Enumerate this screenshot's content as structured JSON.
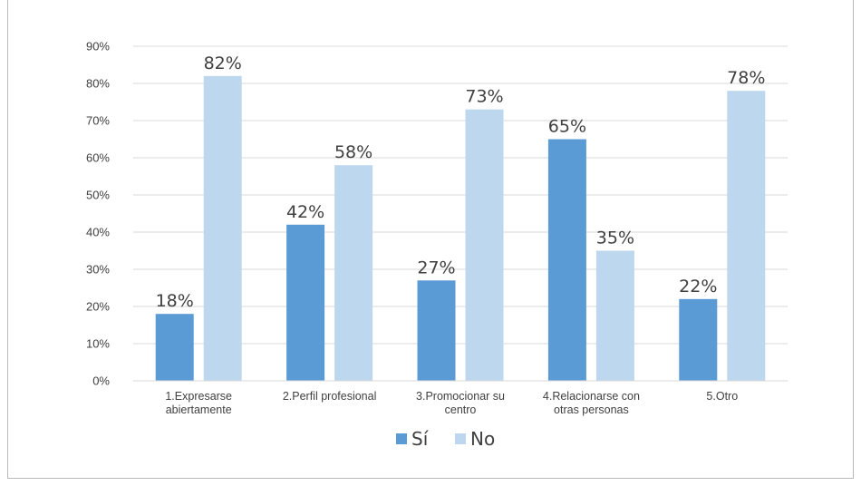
{
  "chart_data": {
    "type": "bar",
    "categories": [
      [
        "1.Expresarse",
        "abiertamente"
      ],
      [
        "2.Perfil profesional"
      ],
      [
        "3.Promocionar su",
        "centro"
      ],
      [
        "4.Relacionarse con",
        "otras personas"
      ],
      [
        "5.Otro"
      ]
    ],
    "series": [
      {
        "name": "Sí",
        "values": [
          18,
          42,
          27,
          65,
          22
        ],
        "color": "#5b9bd5"
      },
      {
        "name": "No",
        "values": [
          82,
          58,
          73,
          35,
          78
        ],
        "color": "#bdd7ee"
      }
    ],
    "data_labels": [
      [
        "18%",
        "42%",
        "27%",
        "65%",
        "22%"
      ],
      [
        "82%",
        "58%",
        "73%",
        "35%",
        "78%"
      ]
    ],
    "yticks": [
      "0%",
      "10%",
      "20%",
      "30%",
      "40%",
      "50%",
      "60%",
      "70%",
      "80%",
      "90%"
    ],
    "ylim": [
      0,
      90
    ],
    "title": "",
    "xlabel": "",
    "ylabel": "",
    "grid": true,
    "legend": "bottom-center",
    "gridline_color": "#d9d9d9"
  }
}
